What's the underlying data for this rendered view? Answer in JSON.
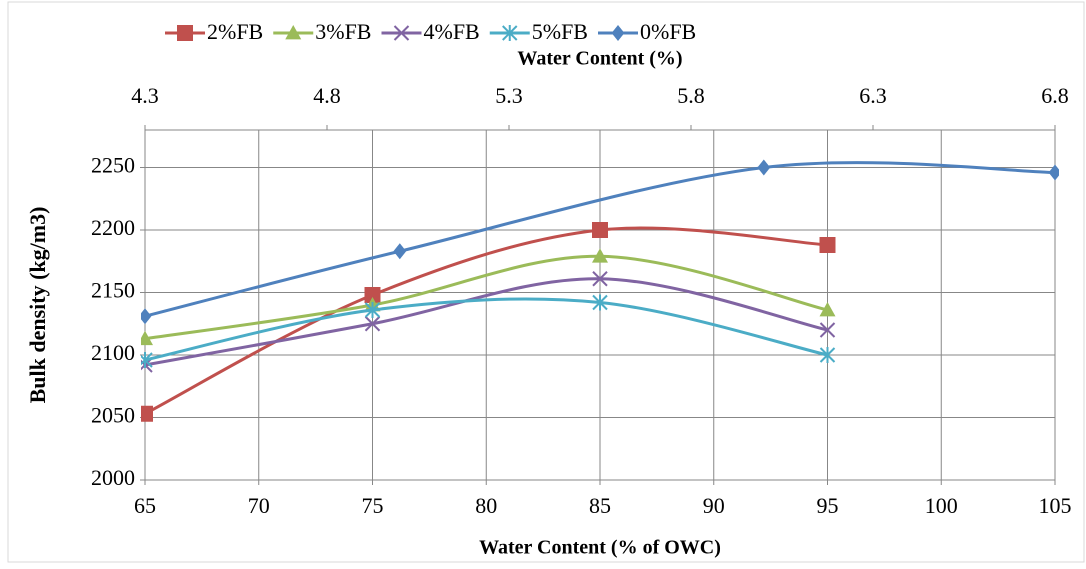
{
  "chart_data": {
    "type": "line",
    "xlabel": "Water Content (% of OWC)",
    "x2label": "Water Content (%)",
    "ylabel": "Bulk density (kg/m3)",
    "xlim": [
      65,
      105
    ],
    "xticks": [
      65,
      70,
      75,
      80,
      85,
      90,
      95,
      100,
      105
    ],
    "x2lim": [
      4.3,
      6.8
    ],
    "x2ticks": [
      4.3,
      4.8,
      5.3,
      5.8,
      6.3,
      6.8
    ],
    "ylim": [
      2000,
      2280
    ],
    "yticks": [
      2000,
      2050,
      2100,
      2150,
      2200,
      2250
    ],
    "grid": true,
    "legend": "top",
    "smooth": true,
    "series": [
      {
        "name": "2%FB",
        "color": "#c0504d",
        "marker": "square",
        "x": [
          65,
          75,
          85,
          95
        ],
        "values": [
          2053,
          2148,
          2200,
          2188
        ]
      },
      {
        "name": "3%FB",
        "color": "#9bbb59",
        "marker": "triangle",
        "x": [
          65,
          75,
          85,
          95
        ],
        "values": [
          2113,
          2140,
          2179,
          2136
        ]
      },
      {
        "name": "4%FB",
        "color": "#8064a2",
        "marker": "x",
        "x": [
          65,
          75,
          85,
          95
        ],
        "values": [
          2092,
          2125,
          2161,
          2120
        ]
      },
      {
        "name": "5%FB",
        "color": "#4bacc6",
        "marker": "star",
        "x": [
          65,
          75,
          85,
          95
        ],
        "values": [
          2096,
          2136,
          2142,
          2100
        ]
      },
      {
        "name": "0%FB",
        "color": "#4f81bd",
        "marker": "diamond",
        "axis": "x2",
        "x": [
          4.3,
          5.0,
          6.0,
          6.8
        ],
        "values": [
          2131,
          2183,
          2250,
          2246
        ]
      }
    ]
  }
}
